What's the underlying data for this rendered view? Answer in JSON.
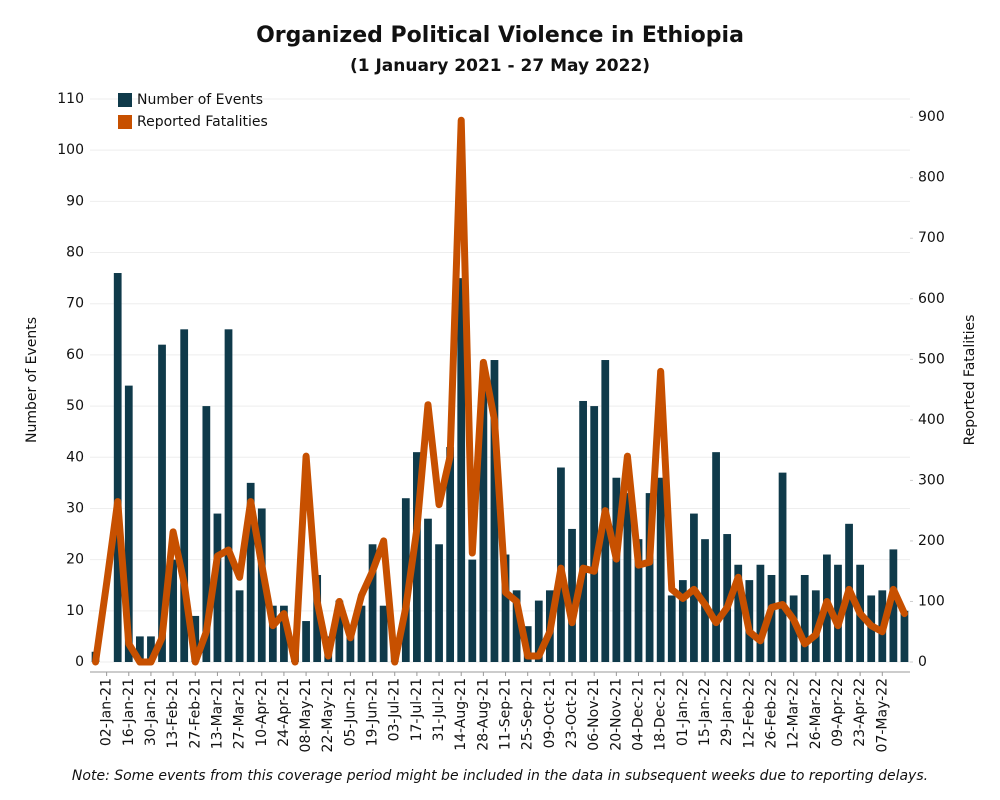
{
  "chart_data": {
    "type": "bar_line",
    "title": "Organized Political Violence in Ethiopia",
    "subtitle": "(1 January 2021 - 27 May 2022)",
    "y_label": "Number of Events",
    "y2_label": "Reported Fatalities",
    "note": "Note: Some events from this coverage period might be included in the data in subsequent weeks due to reporting delays.",
    "categories": [
      null,
      "02-Jan-21",
      null,
      "16-Jan-21",
      null,
      "30-Jan-21",
      null,
      "13-Feb-21",
      null,
      "27-Feb-21",
      null,
      "13-Mar-21",
      null,
      "27-Mar-21",
      null,
      "10-Apr-21",
      null,
      "24-Apr-21",
      null,
      "08-May-21",
      null,
      "22-May-21",
      null,
      "05-Jun-21",
      null,
      "19-Jun-21",
      null,
      "03-Jul-21",
      null,
      "17-Jul-21",
      null,
      "31-Jul-21",
      null,
      "14-Aug-21",
      null,
      "28-Aug-21",
      null,
      "11-Sep-21",
      null,
      "25-Sep-21",
      null,
      "09-Oct-21",
      null,
      "23-Oct-21",
      null,
      "06-Nov-21",
      null,
      "20-Nov-21",
      null,
      "04-Dec-21",
      null,
      "18-Dec-21",
      null,
      "01-Jan-22",
      null,
      "15-Jan-22",
      null,
      "29-Jan-22",
      null,
      "12-Feb-22",
      null,
      "26-Feb-22",
      null,
      "12-Mar-22",
      null,
      "26-Mar-22",
      null,
      "09-Apr-22",
      null,
      "23-Apr-22",
      null,
      "07-May-22",
      null,
      null
    ],
    "series": [
      {
        "name": "Number of Events",
        "color": "#0f3a4a",
        "values": [
          2,
          0,
          76,
          54,
          5,
          5,
          62,
          20,
          65,
          9,
          50,
          29,
          65,
          14,
          35,
          30,
          11,
          11,
          2,
          8,
          17,
          5,
          12,
          5,
          11,
          23,
          11,
          3,
          32,
          41,
          28,
          23,
          42,
          75,
          20,
          55,
          59,
          21,
          14,
          7,
          12,
          14,
          38,
          26,
          51,
          50,
          59,
          36,
          33,
          24,
          33,
          36,
          13,
          16,
          29,
          24,
          41,
          25,
          19,
          16,
          19,
          17,
          37,
          13,
          17,
          14,
          21,
          19,
          27,
          19,
          13,
          14,
          22,
          10
        ]
      },
      {
        "name": "Reported Fatalities",
        "color": "#c75000",
        "axis": "y2",
        "values": [
          0,
          130,
          265,
          30,
          0,
          0,
          40,
          215,
          130,
          0,
          50,
          175,
          185,
          140,
          265,
          160,
          60,
          80,
          0,
          340,
          100,
          10,
          100,
          40,
          110,
          150,
          200,
          0,
          90,
          220,
          425,
          260,
          340,
          895,
          180,
          495,
          400,
          115,
          100,
          10,
          10,
          50,
          155,
          65,
          155,
          150,
          250,
          170,
          340,
          160,
          165,
          480,
          120,
          105,
          120,
          95,
          65,
          90,
          140,
          50,
          35,
          90,
          95,
          70,
          30,
          45,
          100,
          60,
          120,
          80,
          60,
          50,
          120,
          80
        ]
      }
    ],
    "ylim": [
      0,
      110
    ],
    "yticks": [
      0,
      10,
      20,
      30,
      40,
      50,
      60,
      70,
      80,
      90,
      100,
      110
    ],
    "y2lim": [
      0,
      930
    ],
    "y2ticks": [
      0,
      100,
      200,
      300,
      400,
      500,
      600,
      700,
      800,
      900
    ],
    "grid": true,
    "legend": "top-left"
  }
}
